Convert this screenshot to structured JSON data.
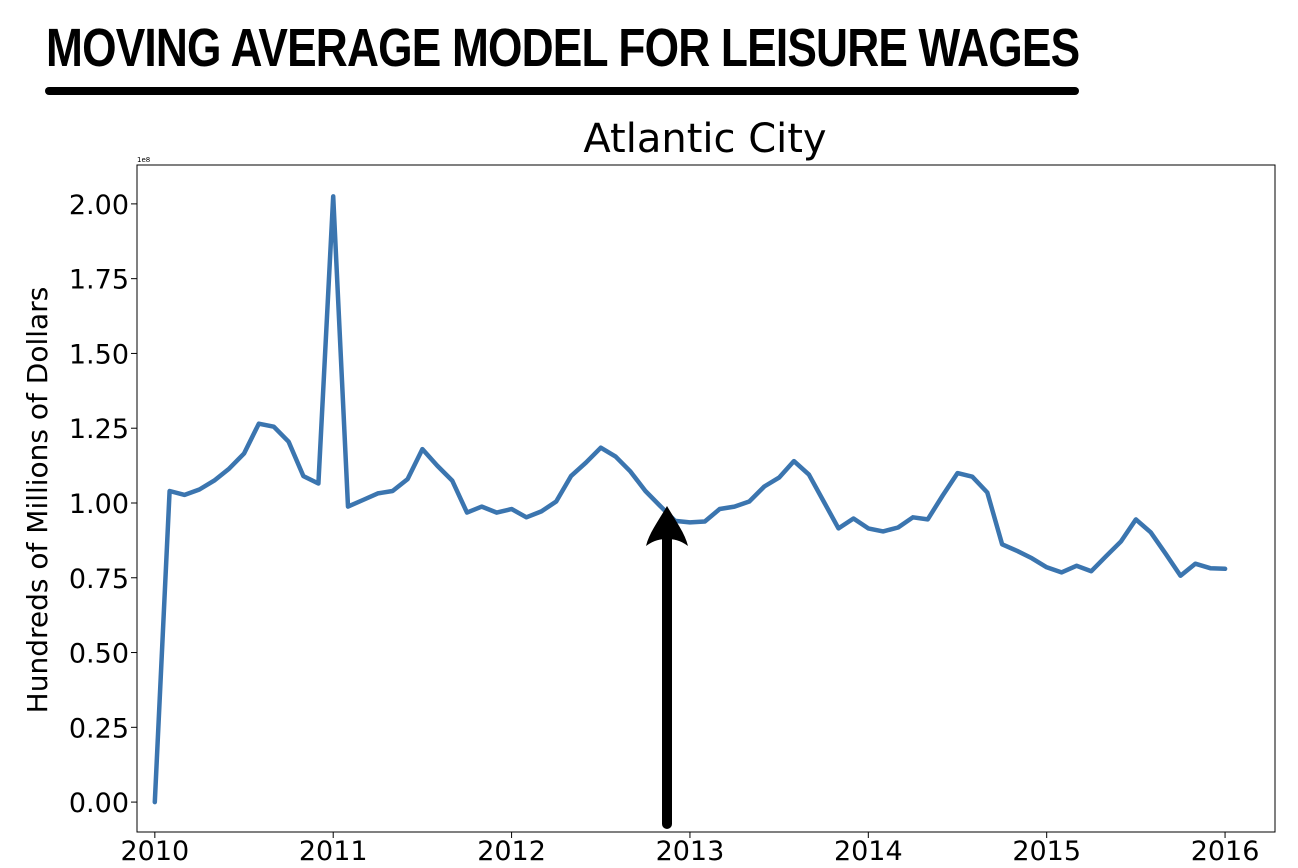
{
  "page": {
    "title": "MOVING AVERAGE MODEL FOR LEISURE WAGES"
  },
  "chart_data": {
    "type": "line",
    "title": "Atlantic City",
    "xlabel": "",
    "ylabel": "Hundreds of Millions of Dollars",
    "y_scale_label": "1e8",
    "xlim": [
      2009.9,
      2016.28
    ],
    "ylim": [
      -0.1,
      2.13
    ],
    "x_ticks": [
      2010,
      2011,
      2012,
      2013,
      2014,
      2015,
      2016
    ],
    "x_tick_labels": [
      "2010",
      "2011",
      "2012",
      "2013",
      "2014",
      "2015",
      "2016"
    ],
    "y_ticks": [
      0.0,
      0.25,
      0.5,
      0.75,
      1.0,
      1.25,
      1.5,
      1.75,
      2.0
    ],
    "y_tick_labels": [
      "0.00",
      "0.25",
      "0.50",
      "0.75",
      "1.00",
      "1.25",
      "1.50",
      "1.75",
      "2.00"
    ],
    "grid": false,
    "line_color": "#3b75af",
    "series": [
      {
        "x": [
          2010.0,
          2010.083,
          2010.167,
          2010.25,
          2010.333,
          2010.417,
          2010.5,
          2010.583,
          2010.667,
          2010.75,
          2010.833,
          2010.917,
          2011.0,
          2011.083,
          2011.167,
          2011.25,
          2011.333,
          2011.417,
          2011.5,
          2011.583,
          2011.667,
          2011.75,
          2011.833,
          2011.917,
          2012.0,
          2012.083,
          2012.167,
          2012.25,
          2012.333,
          2012.417,
          2012.5,
          2012.583,
          2012.667,
          2012.75,
          2012.833,
          2012.917,
          2013.0,
          2013.083,
          2013.167,
          2013.25,
          2013.333,
          2013.417,
          2013.5,
          2013.583,
          2013.667,
          2013.75,
          2013.833,
          2013.917,
          2014.0,
          2014.083,
          2014.167,
          2014.25,
          2014.333,
          2014.417,
          2014.5,
          2014.583,
          2014.667,
          2014.75,
          2014.833,
          2014.917,
          2015.0,
          2015.083,
          2015.167,
          2015.25,
          2015.333,
          2015.417,
          2015.5,
          2015.583,
          2015.667,
          2015.75,
          2015.833,
          2015.917,
          2016.0
        ],
        "values": [
          0.0,
          1.04,
          1.027,
          1.045,
          1.075,
          1.115,
          1.165,
          1.265,
          1.255,
          1.205,
          1.09,
          1.065,
          2.025,
          0.988,
          1.01,
          1.032,
          1.04,
          1.08,
          1.18,
          1.125,
          1.075,
          0.968,
          0.988,
          0.968,
          0.98,
          0.952,
          0.972,
          1.005,
          1.09,
          1.135,
          1.185,
          1.155,
          1.105,
          1.04,
          0.99,
          0.94,
          0.935,
          0.938,
          0.98,
          0.988,
          1.005,
          1.055,
          1.085,
          1.14,
          1.095,
          1.005,
          0.915,
          0.948,
          0.915,
          0.905,
          0.918,
          0.952,
          0.945,
          1.025,
          1.1,
          1.088,
          1.035,
          0.862,
          0.84,
          0.815,
          0.785,
          0.768,
          0.79,
          0.772,
          0.822,
          0.872,
          0.945,
          0.902,
          0.83,
          0.757,
          0.797,
          0.782,
          0.78
        ]
      }
    ]
  }
}
